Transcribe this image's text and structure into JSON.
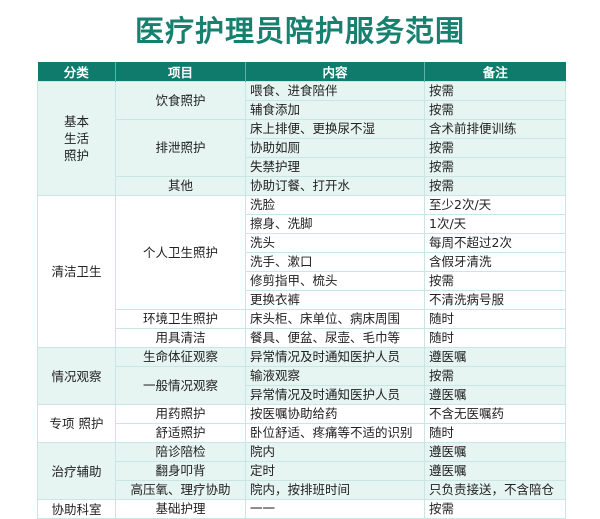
{
  "title": "医疗护理员陪护服务范围",
  "colors": {
    "header": "#0f7b6c",
    "title": "#17806f",
    "shade": "#e6f4f2"
  },
  "headers": [
    "分类",
    "项目",
    "内容",
    "备注"
  ],
  "groups": [
    {
      "category": "基本\n生活\n照护",
      "items": [
        {
          "name": "饮食照护",
          "rows": [
            [
              "喂食、进食陪伴",
              "按需"
            ],
            [
              "辅食添加",
              "按需"
            ]
          ]
        },
        {
          "name": "排泄照护",
          "rows": [
            [
              "床上排便、更换尿不湿",
              "含术前排便训练"
            ],
            [
              "协助如厕",
              "按需"
            ],
            [
              "失禁护理",
              "按需"
            ]
          ]
        },
        {
          "name": "其他",
          "rows": [
            [
              "协助订餐、打开水",
              "按需"
            ]
          ]
        }
      ]
    },
    {
      "category": "清洁卫生",
      "items": [
        {
          "name": "个人卫生照护",
          "rows": [
            [
              "洗脸",
              "至少2次/天"
            ],
            [
              "擦身、洗脚",
              "1次/天"
            ],
            [
              "洗头",
              "每周不超过2次"
            ],
            [
              "洗手、漱口",
              "含假牙清洗"
            ],
            [
              "修剪指甲、梳头",
              "按需"
            ],
            [
              "更换衣裤",
              "不清洗病号服"
            ]
          ]
        },
        {
          "name": "环境卫生照护",
          "rows": [
            [
              "床头柜、床单位、病床周围",
              "随时"
            ]
          ]
        },
        {
          "name": "用具清洁",
          "rows": [
            [
              "餐具、便盆、尿壶、毛巾等",
              "随时"
            ]
          ]
        }
      ]
    },
    {
      "category": "情况观察",
      "items": [
        {
          "name": "生命体征观察",
          "rows": [
            [
              "异常情况及时通知医护人员",
              "遵医嘱"
            ]
          ]
        },
        {
          "name": "一般情况观察",
          "rows": [
            [
              "输液观察",
              "按需"
            ],
            [
              "异常情况及时通知医护人员",
              "遵医嘱"
            ]
          ]
        }
      ]
    },
    {
      "category": "专项 照护",
      "items": [
        {
          "name": "用药照护",
          "rows": [
            [
              "按医嘱协助给药",
              "不含无医嘱药"
            ]
          ]
        },
        {
          "name": "舒适照护",
          "rows": [
            [
              "卧位舒适、疼痛等不适的识别",
              "随时"
            ]
          ]
        }
      ]
    },
    {
      "category": "治疗辅助",
      "items": [
        {
          "name": "陪诊陪检",
          "rows": [
            [
              "院内",
              "遵医嘱"
            ]
          ]
        },
        {
          "name": "翻身叩背",
          "rows": [
            [
              "定时",
              "遵医嘱"
            ]
          ]
        },
        {
          "name": "高压氧、理疗协助",
          "rows": [
            [
              "院内，按排班时间",
              "只负责接送，不含陪仓"
            ]
          ]
        }
      ]
    },
    {
      "category": "协助科室",
      "items": [
        {
          "name": "基础护理",
          "rows": [
            [
              "一一",
              "按需"
            ]
          ]
        }
      ]
    }
  ]
}
